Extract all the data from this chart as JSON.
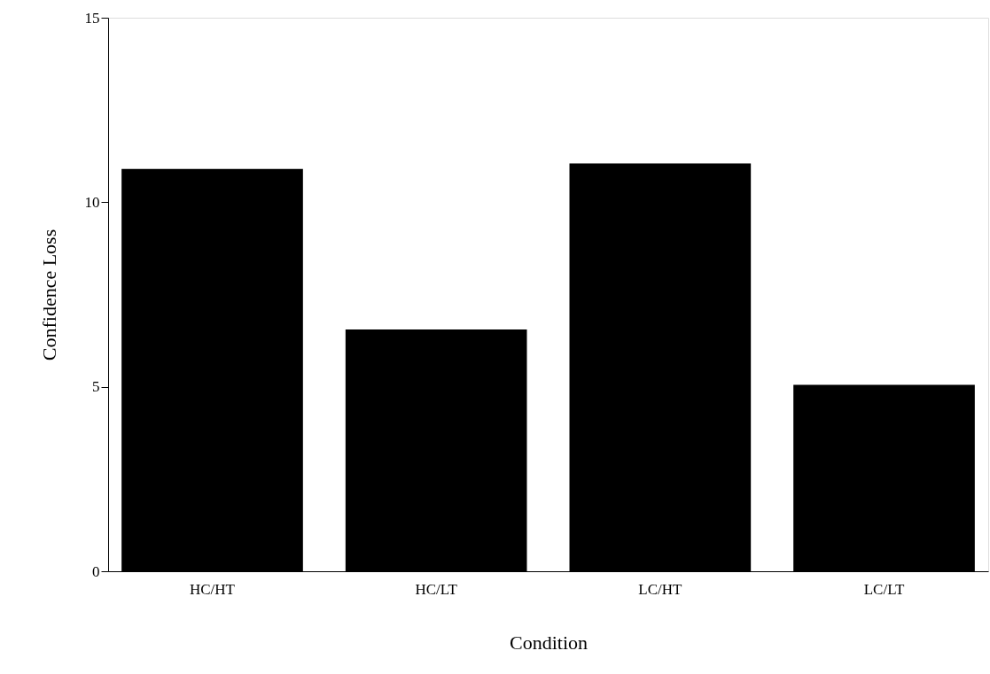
{
  "chart_data": {
    "type": "bar",
    "xlabel": "Condition",
    "ylabel": "Confidence Loss",
    "categories": [
      "HC/HT",
      "HC/LT",
      "LC/HT",
      "LC/LT"
    ],
    "values": [
      10.9,
      6.55,
      11.05,
      5.05
    ],
    "color": "#000000",
    "ylim": [
      0,
      15
    ],
    "yticks": [
      0,
      5,
      10,
      15
    ],
    "grid": false
  }
}
